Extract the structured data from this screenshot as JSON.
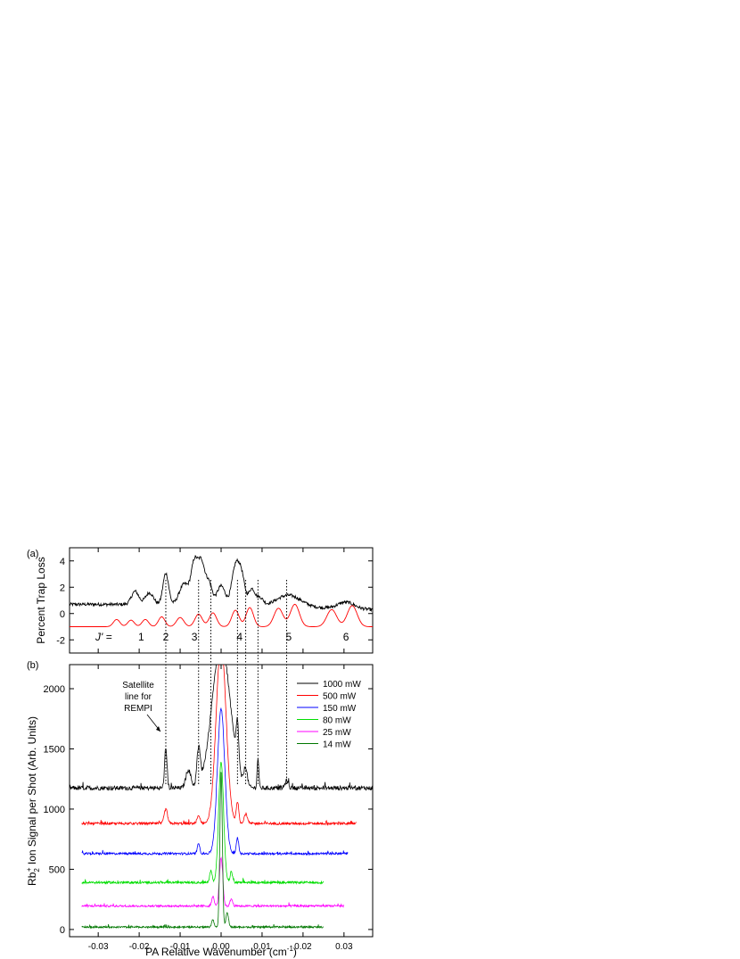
{
  "chart_data": [
    {
      "panel": "(a)",
      "type": "line",
      "ylabel": "Percent Trap Loss",
      "xlim": [
        -0.037,
        0.037
      ],
      "ylim": [
        -3,
        5
      ],
      "yticks": [
        -2,
        0,
        2,
        4
      ],
      "jprime_prefix": "J' =",
      "jprime_labels": [
        {
          "text": "1",
          "x": -0.0195
        },
        {
          "text": "2",
          "x": -0.0135
        },
        {
          "text": "3",
          "x": -0.0065
        },
        {
          "text": "4",
          "x": 0.0045
        },
        {
          "text": "5",
          "x": 0.0165
        },
        {
          "text": "6",
          "x": 0.0305
        }
      ],
      "series": [
        {
          "color": "#000000",
          "baseline": 0.7,
          "end_level": 0.3,
          "noise": 0.12,
          "peaks": [
            {
              "x": -0.021,
              "h": 1.0,
              "w": 0.0009
            },
            {
              "x": -0.0175,
              "h": 0.9,
              "w": 0.001
            },
            {
              "x": -0.0135,
              "h": 2.4,
              "w": 0.0007
            },
            {
              "x": -0.009,
              "h": 1.6,
              "w": 0.0012
            },
            {
              "x": -0.0065,
              "h": 3.1,
              "w": 0.0008
            },
            {
              "x": -0.0048,
              "h": 3.1,
              "w": 0.0008
            },
            {
              "x": -0.003,
              "h": 1.7,
              "w": 0.0008
            },
            {
              "x": 0.0,
              "h": 1.5,
              "w": 0.001
            },
            {
              "x": 0.0035,
              "h": 2.9,
              "w": 0.0009
            },
            {
              "x": 0.005,
              "h": 2.1,
              "w": 0.0008
            },
            {
              "x": 0.0075,
              "h": 1.3,
              "w": 0.0008
            },
            {
              "x": 0.0095,
              "h": 0.6,
              "w": 0.0008
            },
            {
              "x": 0.0165,
              "h": 0.9,
              "w": 0.003
            },
            {
              "x": 0.0305,
              "h": 0.5,
              "w": 0.002
            }
          ]
        },
        {
          "color": "#ff0000",
          "baseline": -1.0,
          "end_level": -1.0,
          "noise": 0.0,
          "peaks": [
            {
              "x": -0.0255,
              "h": 0.55,
              "w": 0.0008
            },
            {
              "x": -0.022,
              "h": 0.5,
              "w": 0.0008
            },
            {
              "x": -0.0185,
              "h": 0.55,
              "w": 0.0008
            },
            {
              "x": -0.0145,
              "h": 0.75,
              "w": 0.0008
            },
            {
              "x": -0.01,
              "h": 0.7,
              "w": 0.0009
            },
            {
              "x": -0.0055,
              "h": 0.95,
              "w": 0.0009
            },
            {
              "x": -0.002,
              "h": 1.05,
              "w": 0.0009
            },
            {
              "x": 0.0035,
              "h": 1.25,
              "w": 0.0009
            },
            {
              "x": 0.007,
              "h": 1.45,
              "w": 0.0009
            },
            {
              "x": 0.014,
              "h": 1.4,
              "w": 0.0011
            },
            {
              "x": 0.018,
              "h": 1.7,
              "w": 0.0011
            },
            {
              "x": 0.027,
              "h": 1.3,
              "w": 0.0012
            },
            {
              "x": 0.032,
              "h": 1.6,
              "w": 0.0012
            }
          ]
        }
      ]
    },
    {
      "panel": "(b)",
      "type": "line",
      "xlabel": "PA Relative Wavenumber (cm",
      "xlabel_sup": "-1",
      "xlabel_end": ")",
      "ylabel_a": "Rb",
      "ylabel_sub": "2",
      "ylabel_sup": "+",
      "ylabel_b": " Ion Signal per Shot (Arb. Units)",
      "xlim": [
        -0.037,
        0.037
      ],
      "ylim": [
        -60,
        2200
      ],
      "xticks": [
        "-0.03",
        "-0.02",
        "-0.01",
        "0.00",
        "0.01",
        "0.02",
        "0.03"
      ],
      "xtick_values": [
        -0.03,
        -0.02,
        -0.01,
        0,
        0.01,
        0.02,
        0.03
      ],
      "yticks": [
        0,
        500,
        1000,
        1500,
        2000
      ],
      "annotation": [
        "Satellite",
        "line for",
        "REMPI"
      ],
      "dotted_lines_x": [
        -0.0135,
        -0.0055,
        -0.0025,
        0.004,
        0.006,
        0.009,
        0.016
      ],
      "series": [
        {
          "name": "1000 mW",
          "color": "#000000",
          "offset": 1175,
          "noise": 18,
          "xrange": [
            -0.037,
            0.037
          ],
          "peaks": [
            {
              "x": -0.0135,
              "h": 330,
              "w": 0.0003
            },
            {
              "x": -0.008,
              "h": 150,
              "w": 0.0006
            },
            {
              "x": -0.0055,
              "h": 300,
              "w": 0.0004
            },
            {
              "x": 0.0,
              "h": 1200,
              "w": 0.0022
            },
            {
              "x": 0.004,
              "h": 350,
              "w": 0.0003
            },
            {
              "x": 0.006,
              "h": 150,
              "w": 0.0004
            },
            {
              "x": 0.009,
              "h": 250,
              "w": 0.0002
            },
            {
              "x": 0.016,
              "h": 60,
              "w": 0.0004
            }
          ]
        },
        {
          "name": "500 mW",
          "color": "#ff0000",
          "offset": 880,
          "noise": 10,
          "xrange": [
            -0.034,
            0.033
          ],
          "peaks": [
            {
              "x": -0.0135,
              "h": 120,
              "w": 0.0004
            },
            {
              "x": -0.0055,
              "h": 60,
              "w": 0.0004
            },
            {
              "x": 0.0,
              "h": 1500,
              "w": 0.0012
            },
            {
              "x": 0.004,
              "h": 180,
              "w": 0.0003
            },
            {
              "x": 0.006,
              "h": 80,
              "w": 0.0004
            }
          ]
        },
        {
          "name": "150 mW",
          "color": "#0000ff",
          "offset": 630,
          "noise": 9,
          "xrange": [
            -0.034,
            0.031
          ],
          "peaks": [
            {
              "x": -0.0055,
              "h": 80,
              "w": 0.0003
            },
            {
              "x": 0.0,
              "h": 1200,
              "w": 0.0009
            },
            {
              "x": 0.004,
              "h": 130,
              "w": 0.0003
            }
          ]
        },
        {
          "name": "80 mW",
          "color": "#00dd00",
          "offset": 390,
          "noise": 9,
          "xrange": [
            -0.034,
            0.025
          ],
          "peaks": [
            {
              "x": -0.0025,
              "h": 100,
              "w": 0.0003
            },
            {
              "x": 0.0,
              "h": 1000,
              "w": 0.0006
            },
            {
              "x": 0.0025,
              "h": 90,
              "w": 0.0003
            }
          ]
        },
        {
          "name": "25 mW",
          "color": "#ff00ff",
          "offset": 195,
          "noise": 8,
          "xrange": [
            -0.034,
            0.03
          ],
          "peaks": [
            {
              "x": -0.002,
              "h": 80,
              "w": 0.0003
            },
            {
              "x": 0.0,
              "h": 400,
              "w": 0.0004
            },
            {
              "x": 0.0025,
              "h": 60,
              "w": 0.0003
            }
          ]
        },
        {
          "name": "14 mW",
          "color": "#007700",
          "offset": 20,
          "noise": 7,
          "xrange": [
            -0.034,
            0.025
          ],
          "peaks": [
            {
              "x": -0.002,
              "h": 60,
              "w": 0.0003
            },
            {
              "x": 0.0,
              "h": 1300,
              "w": 0.0003
            },
            {
              "x": 0.0015,
              "h": 120,
              "w": 0.0003
            }
          ]
        }
      ]
    }
  ]
}
